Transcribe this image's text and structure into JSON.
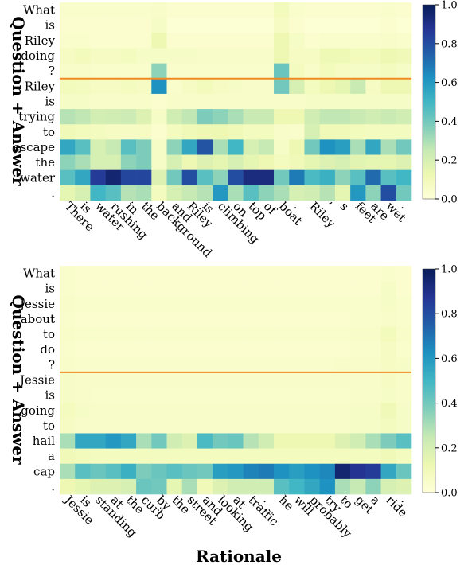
{
  "axis_titles": {
    "y": "Question + Answer",
    "x": "Rationale"
  },
  "separator_color": "#f08a24",
  "colormap": "YlGnBu",
  "chart_data": [
    {
      "type": "heatmap",
      "ylabel": "Question + Answer",
      "rows": [
        "What",
        "is",
        "Riley",
        "doing",
        "?",
        "Riley",
        "is",
        "trying",
        "to",
        "escape",
        "the",
        "water",
        "."
      ],
      "cols": [
        "There",
        "is",
        "water",
        "rushing",
        "in",
        "the",
        "background",
        "and",
        "Riley",
        "is",
        "climbing",
        "on",
        "top",
        "of",
        "boat",
        ".",
        "Riley",
        "’",
        "s",
        "feet",
        "are",
        "wet",
        "."
      ],
      "separator_after_row": 4,
      "colorbar": {
        "min": 0.0,
        "max": 1.0,
        "ticks": [
          "0.0",
          "0.2",
          "0.4",
          "0.6",
          "0.8",
          "1.0"
        ]
      },
      "values": [
        [
          0.04,
          0.04,
          0.04,
          0.04,
          0.04,
          0.04,
          0.05,
          0.03,
          0.03,
          0.03,
          0.03,
          0.03,
          0.03,
          0.03,
          0.09,
          0.04,
          0.03,
          0.03,
          0.03,
          0.03,
          0.03,
          0.04,
          0.03
        ],
        [
          0.03,
          0.03,
          0.03,
          0.03,
          0.03,
          0.03,
          0.06,
          0.02,
          0.02,
          0.02,
          0.02,
          0.02,
          0.02,
          0.02,
          0.07,
          0.03,
          0.02,
          0.02,
          0.02,
          0.02,
          0.02,
          0.03,
          0.02
        ],
        [
          0.04,
          0.04,
          0.03,
          0.03,
          0.03,
          0.03,
          0.12,
          0.03,
          0.03,
          0.03,
          0.03,
          0.03,
          0.03,
          0.03,
          0.12,
          0.06,
          0.03,
          0.04,
          0.04,
          0.04,
          0.04,
          0.05,
          0.04
        ],
        [
          0.07,
          0.09,
          0.07,
          0.07,
          0.08,
          0.06,
          0.06,
          0.06,
          0.06,
          0.05,
          0.05,
          0.05,
          0.05,
          0.05,
          0.12,
          0.07,
          0.07,
          0.11,
          0.11,
          0.09,
          0.09,
          0.12,
          0.1
        ],
        [
          0.05,
          0.05,
          0.04,
          0.04,
          0.04,
          0.04,
          0.35,
          0.04,
          0.04,
          0.04,
          0.04,
          0.04,
          0.04,
          0.04,
          0.42,
          0.08,
          0.05,
          0.09,
          0.07,
          0.06,
          0.06,
          0.08,
          0.06
        ],
        [
          0.09,
          0.08,
          0.07,
          0.07,
          0.08,
          0.07,
          0.62,
          0.04,
          0.07,
          0.09,
          0.07,
          0.06,
          0.05,
          0.05,
          0.4,
          0.2,
          0.08,
          0.12,
          0.15,
          0.24,
          0.07,
          0.12,
          0.12
        ],
        [
          0.06,
          0.06,
          0.05,
          0.05,
          0.05,
          0.05,
          0.03,
          0.05,
          0.05,
          0.05,
          0.05,
          0.05,
          0.05,
          0.05,
          0.05,
          0.05,
          0.06,
          0.06,
          0.06,
          0.06,
          0.06,
          0.06,
          0.06
        ],
        [
          0.28,
          0.26,
          0.21,
          0.22,
          0.23,
          0.18,
          0.06,
          0.22,
          0.26,
          0.38,
          0.35,
          0.3,
          0.24,
          0.24,
          0.12,
          0.12,
          0.22,
          0.26,
          0.26,
          0.24,
          0.22,
          0.24,
          0.22
        ],
        [
          0.1,
          0.09,
          0.08,
          0.07,
          0.07,
          0.07,
          0.03,
          0.08,
          0.1,
          0.12,
          0.12,
          0.1,
          0.08,
          0.08,
          0.05,
          0.04,
          0.2,
          0.1,
          0.1,
          0.09,
          0.08,
          0.08,
          0.08
        ],
        [
          0.55,
          0.45,
          0.2,
          0.25,
          0.45,
          0.38,
          0.06,
          0.35,
          0.55,
          0.78,
          0.3,
          0.5,
          0.2,
          0.25,
          0.06,
          0.12,
          0.4,
          0.62,
          0.58,
          0.3,
          0.55,
          0.3,
          0.4
        ],
        [
          0.35,
          0.3,
          0.2,
          0.2,
          0.35,
          0.38,
          0.06,
          0.2,
          0.12,
          0.18,
          0.15,
          0.2,
          0.15,
          0.12,
          0.08,
          0.1,
          0.15,
          0.18,
          0.2,
          0.16,
          0.15,
          0.15,
          0.18
        ],
        [
          0.45,
          0.55,
          0.85,
          0.95,
          0.82,
          0.82,
          0.18,
          0.4,
          0.8,
          0.45,
          0.35,
          0.8,
          0.92,
          0.92,
          0.4,
          0.68,
          0.48,
          0.52,
          0.35,
          0.45,
          0.72,
          0.45,
          0.5
        ],
        [
          0.15,
          0.2,
          0.5,
          0.45,
          0.28,
          0.3,
          0.08,
          0.2,
          0.25,
          0.28,
          0.6,
          0.3,
          0.45,
          0.35,
          0.3,
          0.2,
          0.22,
          0.28,
          0.15,
          0.6,
          0.35,
          0.8,
          0.4
        ]
      ]
    },
    {
      "type": "heatmap",
      "ylabel": "Question + Answer",
      "xlabel": "Rationale",
      "rows": [
        "What",
        "is",
        "Jessie",
        "about",
        "to",
        "do",
        "?",
        "Jessie",
        "is",
        "going",
        "to",
        "hail",
        "a",
        "cap",
        "."
      ],
      "cols": [
        "Jessie",
        "is",
        "standing",
        "at",
        "the",
        "curb",
        "by",
        "the",
        "street",
        "and",
        "looking",
        "at",
        "traffic",
        ".",
        "he",
        "will",
        "probably",
        "try",
        "to",
        "get",
        "a",
        "ride",
        "."
      ],
      "separator_after_row": 6,
      "colorbar": {
        "min": 0.0,
        "max": 1.0,
        "ticks": [
          "0.0",
          "0.2",
          "0.4",
          "0.6",
          "0.8",
          "1.0"
        ]
      },
      "values": [
        [
          0.04,
          0.03,
          0.03,
          0.03,
          0.03,
          0.03,
          0.03,
          0.03,
          0.03,
          0.03,
          0.03,
          0.03,
          0.03,
          0.03,
          0.03,
          0.03,
          0.03,
          0.03,
          0.03,
          0.03,
          0.03,
          0.04,
          0.03
        ],
        [
          0.04,
          0.03,
          0.03,
          0.03,
          0.03,
          0.03,
          0.03,
          0.03,
          0.03,
          0.03,
          0.03,
          0.03,
          0.03,
          0.03,
          0.03,
          0.03,
          0.03,
          0.03,
          0.03,
          0.03,
          0.03,
          0.06,
          0.03
        ],
        [
          0.05,
          0.04,
          0.04,
          0.04,
          0.04,
          0.04,
          0.04,
          0.04,
          0.04,
          0.04,
          0.04,
          0.04,
          0.04,
          0.04,
          0.04,
          0.04,
          0.04,
          0.04,
          0.04,
          0.04,
          0.04,
          0.06,
          0.04
        ],
        [
          0.04,
          0.03,
          0.03,
          0.03,
          0.03,
          0.03,
          0.03,
          0.03,
          0.03,
          0.03,
          0.03,
          0.03,
          0.03,
          0.03,
          0.03,
          0.03,
          0.03,
          0.03,
          0.03,
          0.04,
          0.04,
          0.05,
          0.04
        ],
        [
          0.05,
          0.04,
          0.04,
          0.04,
          0.04,
          0.04,
          0.04,
          0.04,
          0.04,
          0.04,
          0.04,
          0.04,
          0.04,
          0.04,
          0.04,
          0.04,
          0.04,
          0.04,
          0.04,
          0.05,
          0.05,
          0.09,
          0.05
        ],
        [
          0.04,
          0.03,
          0.03,
          0.03,
          0.03,
          0.03,
          0.03,
          0.03,
          0.03,
          0.03,
          0.03,
          0.03,
          0.03,
          0.03,
          0.03,
          0.03,
          0.03,
          0.03,
          0.03,
          0.04,
          0.04,
          0.07,
          0.04
        ],
        [
          0.05,
          0.04,
          0.04,
          0.04,
          0.04,
          0.04,
          0.04,
          0.04,
          0.04,
          0.04,
          0.04,
          0.04,
          0.04,
          0.04,
          0.04,
          0.04,
          0.04,
          0.04,
          0.05,
          0.05,
          0.05,
          0.07,
          0.06
        ],
        [
          0.06,
          0.05,
          0.05,
          0.05,
          0.05,
          0.05,
          0.05,
          0.05,
          0.05,
          0.05,
          0.05,
          0.05,
          0.05,
          0.05,
          0.05,
          0.05,
          0.05,
          0.05,
          0.05,
          0.05,
          0.05,
          0.07,
          0.05
        ],
        [
          0.06,
          0.05,
          0.04,
          0.04,
          0.04,
          0.04,
          0.04,
          0.04,
          0.04,
          0.04,
          0.04,
          0.04,
          0.04,
          0.04,
          0.04,
          0.04,
          0.04,
          0.04,
          0.04,
          0.05,
          0.05,
          0.06,
          0.05
        ],
        [
          0.08,
          0.06,
          0.05,
          0.05,
          0.05,
          0.05,
          0.05,
          0.05,
          0.05,
          0.05,
          0.05,
          0.05,
          0.05,
          0.05,
          0.05,
          0.05,
          0.05,
          0.05,
          0.05,
          0.06,
          0.06,
          0.1,
          0.06
        ],
        [
          0.07,
          0.05,
          0.05,
          0.05,
          0.05,
          0.05,
          0.05,
          0.05,
          0.05,
          0.05,
          0.05,
          0.05,
          0.05,
          0.05,
          0.05,
          0.05,
          0.05,
          0.05,
          0.05,
          0.06,
          0.06,
          0.08,
          0.06
        ],
        [
          0.3,
          0.55,
          0.55,
          0.6,
          0.55,
          0.3,
          0.4,
          0.22,
          0.18,
          0.48,
          0.4,
          0.42,
          0.28,
          0.22,
          0.12,
          0.12,
          0.12,
          0.12,
          0.18,
          0.22,
          0.3,
          0.38,
          0.45
        ],
        [
          0.1,
          0.09,
          0.08,
          0.08,
          0.08,
          0.08,
          0.08,
          0.08,
          0.08,
          0.08,
          0.08,
          0.08,
          0.08,
          0.08,
          0.08,
          0.08,
          0.08,
          0.08,
          0.08,
          0.08,
          0.08,
          0.1,
          0.08
        ],
        [
          0.3,
          0.45,
          0.42,
          0.45,
          0.52,
          0.38,
          0.42,
          0.45,
          0.42,
          0.4,
          0.58,
          0.6,
          0.66,
          0.68,
          0.62,
          0.58,
          0.62,
          0.65,
          0.95,
          0.88,
          0.85,
          0.55,
          0.42
        ],
        [
          0.12,
          0.15,
          0.18,
          0.18,
          0.2,
          0.42,
          0.4,
          0.15,
          0.3,
          0.1,
          0.18,
          0.22,
          0.22,
          0.22,
          0.45,
          0.5,
          0.55,
          0.62,
          0.3,
          0.25,
          0.35,
          0.2,
          0.18
        ]
      ]
    }
  ]
}
